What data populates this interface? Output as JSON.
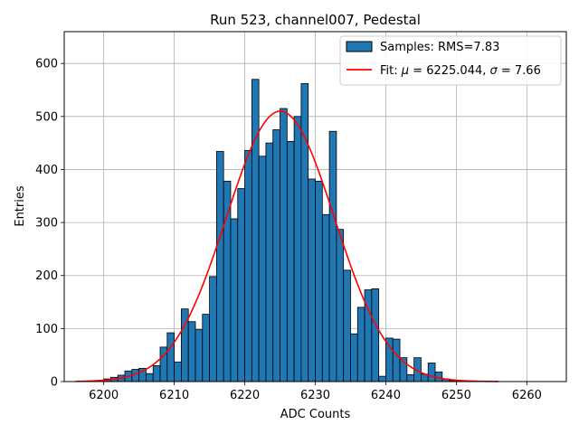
{
  "chart_data": {
    "type": "bar",
    "title": "Run 523, channel007, Pedestal",
    "xlabel": "ADC Counts",
    "ylabel": "Entries",
    "xlim": [
      6194.4,
      6265.6
    ],
    "ylim": [
      0,
      660
    ],
    "grid": true,
    "legend_position": "top-right",
    "xticks": [
      6200,
      6210,
      6220,
      6230,
      6240,
      6250,
      6260
    ],
    "yticks": [
      0,
      100,
      200,
      300,
      400,
      500,
      600
    ],
    "bin_width": 1,
    "series": [
      {
        "name": "Samples: RMS=7.83",
        "kind": "histogram",
        "color": "#1f77b4",
        "edge_color": "#000000",
        "x": [
          6198,
          6199,
          6200,
          6201,
          6202,
          6203,
          6204,
          6205,
          6206,
          6207,
          6208,
          6209,
          6210,
          6211,
          6212,
          6213,
          6214,
          6215,
          6216,
          6217,
          6218,
          6219,
          6220,
          6221,
          6222,
          6223,
          6224,
          6225,
          6226,
          6227,
          6228,
          6229,
          6230,
          6231,
          6232,
          6233,
          6234,
          6235,
          6236,
          6237,
          6238,
          6239,
          6240,
          6241,
          6242,
          6243,
          6244,
          6245,
          6246,
          6247,
          6248,
          6249,
          6250,
          6251,
          6252,
          6253
        ],
        "values": [
          1,
          2,
          5,
          8,
          12,
          20,
          23,
          25,
          15,
          30,
          65,
          92,
          37,
          137,
          113,
          98,
          127,
          198,
          434,
          378,
          307,
          364,
          436,
          570,
          425,
          450,
          475,
          515,
          453,
          500,
          562,
          382,
          378,
          315,
          472,
          287,
          210,
          90,
          140,
          173,
          175,
          10,
          82,
          80,
          45,
          13,
          45,
          14,
          35,
          18,
          5,
          2,
          1,
          1,
          1,
          1
        ]
      },
      {
        "name": "Fit: μ = 6225.044, σ = 7.66",
        "kind": "gaussian-fit",
        "color": "#ff0000",
        "mu": 6225.044,
        "sigma": 7.66,
        "amplitude": 510,
        "x_range": [
          6196,
          6256
        ]
      }
    ],
    "legend": [
      {
        "label_prefix": "Samples: RMS=7.83",
        "swatch": "patch"
      },
      {
        "label_prefix": "Fit: ",
        "mu_symbol": "μ",
        "mu_text": " = 6225.044, ",
        "sigma_symbol": "σ",
        "sigma_text": " = 7.66",
        "swatch": "line"
      }
    ]
  }
}
